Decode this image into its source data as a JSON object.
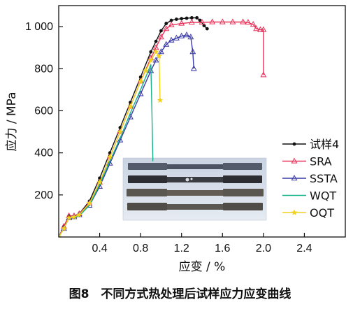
{
  "caption": "图8　不同方式热处理后试样应力应变曲线",
  "colors": {
    "specimen": "#111111",
    "SRA": "#e8325a",
    "SSTA": "#3a3aa8",
    "WQT": "#14b38a",
    "OQT": "#f0d21e"
  },
  "chart_data": {
    "type": "line",
    "title": "",
    "xlabel": "应变 / %",
    "ylabel": "应力 / MPa",
    "xlim": [
      0,
      2.8
    ],
    "ylim": [
      0,
      1100
    ],
    "xticks": [
      0.4,
      0.8,
      1.2,
      1.6,
      2.0,
      2.4
    ],
    "xtick_labels": [
      "0.4",
      "0.8",
      "1.2",
      "1.6",
      "2.0",
      "2.4"
    ],
    "yticks": [
      200,
      400,
      600,
      800,
      1000
    ],
    "ytick_labels": [
      "200",
      "400",
      "600",
      "800",
      "1 000"
    ],
    "legend_position": "right",
    "inset_image": "photo of four tensile test specimens",
    "series": [
      {
        "name": "试样4",
        "color": "#111111",
        "marker": "dot",
        "x": [
          0,
          0.05,
          0.1,
          0.15,
          0.2,
          0.3,
          0.4,
          0.5,
          0.6,
          0.7,
          0.8,
          0.9,
          0.95,
          1.0,
          1.05,
          1.1,
          1.15,
          1.2,
          1.25,
          1.3,
          1.35,
          1.38,
          1.42,
          1.45
        ],
        "y": [
          0,
          50,
          100,
          100,
          110,
          170,
          280,
          400,
          520,
          640,
          760,
          880,
          930,
          980,
          1015,
          1030,
          1035,
          1038,
          1040,
          1042,
          1042,
          1030,
          1005,
          990
        ]
      },
      {
        "name": "SRA",
        "color": "#e8325a",
        "marker": "triangle",
        "x": [
          0,
          0.05,
          0.1,
          0.15,
          0.2,
          0.3,
          0.4,
          0.5,
          0.6,
          0.7,
          0.8,
          0.9,
          0.95,
          1.0,
          1.05,
          1.1,
          1.2,
          1.3,
          1.4,
          1.5,
          1.6,
          1.7,
          1.8,
          1.85,
          1.9,
          1.93,
          1.97,
          2.0,
          2.0
        ],
        "y": [
          0,
          50,
          100,
          100,
          110,
          160,
          260,
          380,
          500,
          620,
          740,
          850,
          900,
          950,
          990,
          1008,
          1015,
          1020,
          1020,
          1022,
          1022,
          1022,
          1022,
          1020,
          1010,
          990,
          985,
          985,
          770
        ]
      },
      {
        "name": "SSTA",
        "color": "#3a3aa8",
        "marker": "triangle",
        "x": [
          0,
          0.05,
          0.1,
          0.15,
          0.2,
          0.3,
          0.4,
          0.5,
          0.6,
          0.7,
          0.8,
          0.9,
          0.95,
          1.0,
          1.05,
          1.1,
          1.15,
          1.2,
          1.25,
          1.29,
          1.31,
          1.32
        ],
        "y": [
          0,
          40,
          90,
          95,
          105,
          150,
          240,
          350,
          460,
          570,
          680,
          790,
          840,
          880,
          915,
          935,
          945,
          955,
          960,
          950,
          880,
          800
        ]
      },
      {
        "name": "WQT",
        "color": "#14b38a",
        "marker": "none",
        "x": [
          0,
          0.05,
          0.1,
          0.15,
          0.2,
          0.3,
          0.4,
          0.5,
          0.6,
          0.7,
          0.8,
          0.85,
          0.9,
          0.91,
          0.92
        ],
        "y": [
          0,
          40,
          90,
          95,
          100,
          150,
          250,
          360,
          470,
          590,
          700,
          760,
          820,
          600,
          360
        ]
      },
      {
        "name": "OQT",
        "color": "#f0d21e",
        "marker": "star",
        "x": [
          0,
          0.05,
          0.1,
          0.15,
          0.2,
          0.3,
          0.4,
          0.5,
          0.6,
          0.7,
          0.8,
          0.85,
          0.9,
          0.95,
          0.98,
          0.99
        ],
        "y": [
          0,
          40,
          90,
          95,
          105,
          160,
          260,
          380,
          500,
          620,
          740,
          790,
          840,
          880,
          860,
          650
        ]
      }
    ]
  }
}
